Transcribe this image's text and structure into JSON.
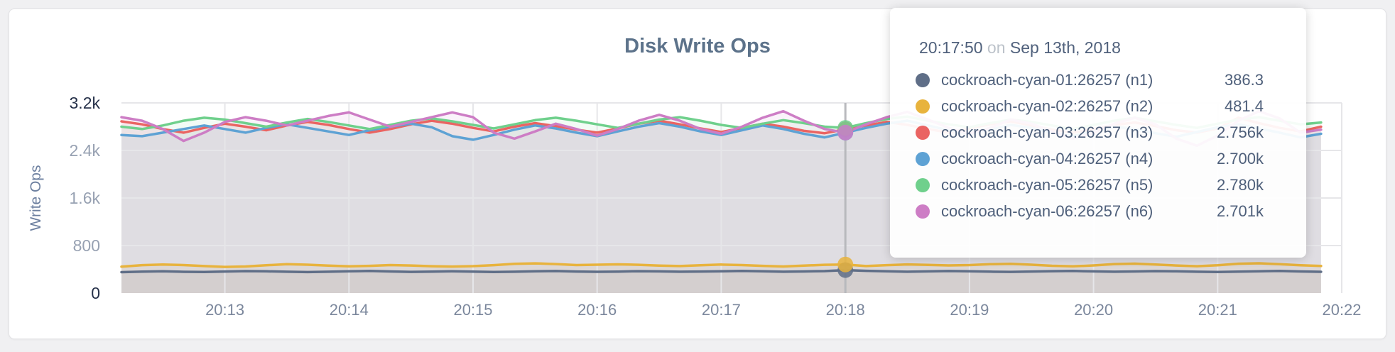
{
  "chart_data": {
    "type": "line",
    "title": "Disk Write Ops",
    "ylabel": "Write Ops",
    "ylim": [
      0,
      3200
    ],
    "grid": true,
    "x_start": "20:12:10",
    "x_interval_seconds": 10,
    "x_ticks": [
      "20:13",
      "20:14",
      "20:15",
      "20:16",
      "20:17",
      "20:18",
      "20:19",
      "20:20",
      "20:21",
      "20:22"
    ],
    "y_ticks": [
      {
        "label": "3.2k",
        "value": 3200,
        "emph": true
      },
      {
        "label": "2.4k",
        "value": 2400,
        "emph": false
      },
      {
        "label": "1.6k",
        "value": 1600,
        "emph": false
      },
      {
        "label": "800",
        "value": 800,
        "emph": false
      },
      {
        "label": "0",
        "value": 0,
        "emph": true
      }
    ],
    "hover": {
      "index": 35,
      "time": "20:17:50"
    },
    "series": [
      {
        "name": "cockroach-cyan-01:26257 (n1)",
        "color": "#5f6e87",
        "values": [
          352,
          361,
          368,
          358,
          355,
          363,
          370,
          366,
          359,
          354,
          360,
          367,
          372,
          364,
          357,
          361,
          368,
          362,
          356,
          360,
          366,
          371,
          363,
          358,
          362,
          369,
          365,
          359,
          363,
          368,
          372,
          366,
          360,
          364,
          370,
          386.3,
          375,
          366,
          360,
          365,
          371,
          367,
          361,
          357,
          363,
          369,
          373,
          365,
          359,
          364,
          370,
          366,
          360,
          355,
          362,
          368,
          372,
          364,
          358
        ]
      },
      {
        "name": "cockroach-cyan-02:26257 (n2)",
        "color": "#e8b33d",
        "values": [
          445,
          470,
          480,
          472,
          455,
          440,
          448,
          468,
          486,
          478,
          462,
          450,
          458,
          472,
          465,
          452,
          446,
          454,
          470,
          492,
          500,
          488,
          472,
          478,
          484,
          476,
          462,
          455,
          468,
          480,
          472,
          458,
          448,
          462,
          476,
          481.4,
          455,
          470,
          482,
          474,
          466,
          472,
          486,
          492,
          478,
          460,
          450,
          466,
          488,
          496,
          480,
          464,
          452,
          468,
          494,
          502,
          486,
          468,
          456
        ]
      },
      {
        "name": "cockroach-cyan-03:26257 (n3)",
        "color": "#ea6462",
        "values": [
          2890,
          2840,
          2760,
          2700,
          2780,
          2850,
          2800,
          2740,
          2820,
          2880,
          2830,
          2760,
          2700,
          2760,
          2840,
          2900,
          2850,
          2780,
          2720,
          2800,
          2860,
          2810,
          2750,
          2700,
          2770,
          2850,
          2900,
          2840,
          2770,
          2710,
          2780,
          2850,
          2800,
          2730,
          2690,
          2756,
          2820,
          2880,
          2830,
          2760,
          2700,
          2770,
          2840,
          2890,
          2820,
          2750,
          2700,
          2760,
          2830,
          2870,
          2810,
          2740,
          2700,
          2770,
          2950,
          2860,
          2780,
          2720,
          2800
        ]
      },
      {
        "name": "cockroach-cyan-04:26257 (n4)",
        "color": "#5ea2d4",
        "values": [
          2660,
          2640,
          2700,
          2760,
          2820,
          2760,
          2700,
          2780,
          2840,
          2780,
          2720,
          2660,
          2740,
          2800,
          2850,
          2790,
          2640,
          2580,
          2660,
          2750,
          2820,
          2770,
          2700,
          2640,
          2720,
          2800,
          2860,
          2800,
          2720,
          2660,
          2740,
          2820,
          2760,
          2680,
          2620,
          2700,
          2780,
          2850,
          2900,
          2820,
          2740,
          2680,
          2750,
          2830,
          2780,
          2700,
          2640,
          2720,
          2800,
          2760,
          2690,
          2630,
          2710,
          2790,
          2840,
          2770,
          2700,
          2620,
          2680
        ]
      },
      {
        "name": "cockroach-cyan-05:26257 (n5)",
        "color": "#6fd08c",
        "values": [
          2800,
          2760,
          2820,
          2900,
          2950,
          2920,
          2860,
          2800,
          2870,
          2930,
          2880,
          2820,
          2760,
          2830,
          2900,
          2940,
          2890,
          2830,
          2770,
          2840,
          2910,
          2950,
          2900,
          2840,
          2780,
          2850,
          2920,
          2960,
          2900,
          2830,
          2780,
          2850,
          2910,
          2860,
          2800,
          2780,
          2860,
          2930,
          2970,
          2900,
          2840,
          2790,
          2860,
          2920,
          2880,
          2820,
          2760,
          2830,
          2900,
          2950,
          2890,
          2830,
          2780,
          2850,
          2920,
          2960,
          2900,
          2840,
          2870
        ]
      },
      {
        "name": "cockroach-cyan-06:26257 (n6)",
        "color": "#cd7dc5",
        "values": [
          2960,
          2900,
          2760,
          2560,
          2700,
          2880,
          2960,
          2900,
          2820,
          2900,
          2980,
          3040,
          2920,
          2800,
          2880,
          2960,
          3040,
          2960,
          2700,
          2600,
          2720,
          2850,
          2760,
          2650,
          2760,
          2900,
          3000,
          2900,
          2760,
          2680,
          2800,
          2950,
          3060,
          2900,
          2760,
          2701,
          2840,
          2960,
          3050,
          2920,
          2780,
          2680,
          2780,
          2920,
          2850,
          2720,
          2600,
          2700,
          2850,
          2950,
          2840,
          2600,
          2480,
          2650,
          2900,
          3060,
          2940,
          2700,
          2750
        ]
      }
    ]
  },
  "tooltip": {
    "time": "20:17:50",
    "separator": "on",
    "date": "Sep 13th, 2018",
    "rows": [
      {
        "name": "cockroach-cyan-01:26257 (n1)",
        "value": "386.3",
        "color": "#5f6e87"
      },
      {
        "name": "cockroach-cyan-02:26257 (n2)",
        "value": "481.4",
        "color": "#e8b33d"
      },
      {
        "name": "cockroach-cyan-03:26257 (n3)",
        "value": "2.756k",
        "color": "#ea6462"
      },
      {
        "name": "cockroach-cyan-04:26257 (n4)",
        "value": "2.700k",
        "color": "#5ea2d4"
      },
      {
        "name": "cockroach-cyan-05:26257 (n5)",
        "value": "2.780k",
        "color": "#6fd08c"
      },
      {
        "name": "cockroach-cyan-06:26257 (n6)",
        "value": "2.701k",
        "color": "#cd7dc5"
      }
    ]
  }
}
